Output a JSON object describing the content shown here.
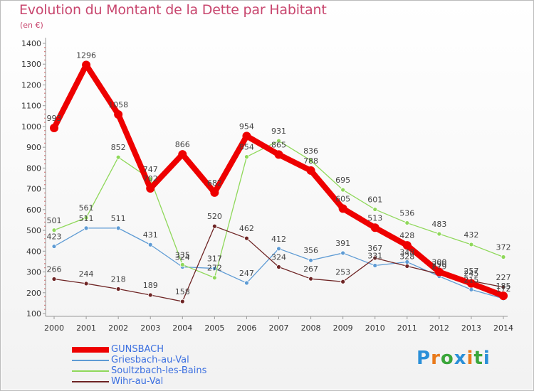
{
  "title": "Evolution du Montant de la Dette par Habitant",
  "unit": "(en €)",
  "logo": "Proxiti",
  "chart_data": {
    "type": "line",
    "title": "Evolution du Montant de la Dette par Habitant",
    "ylabel": "(en €)",
    "xlabel": "",
    "x": [
      "2000",
      "2001",
      "2002",
      "2003",
      "2004",
      "2005",
      "2006",
      "2007",
      "2008",
      "2009",
      "2010",
      "2011",
      "2012",
      "2013",
      "2014"
    ],
    "ylim": [
      100,
      1400
    ],
    "yticks": [
      100,
      200,
      300,
      400,
      500,
      600,
      700,
      800,
      900,
      1000,
      1100,
      1200,
      1300,
      1400
    ],
    "grid": false,
    "legend": "bottom-left",
    "series": [
      {
        "name": "GUNSBACH",
        "color": "#ee0000",
        "thick": true,
        "values": [
          993,
          1296,
          1058,
          702,
          866,
          682,
          954,
          865,
          788,
          605,
          513,
          428,
          300,
          245,
          185
        ],
        "labels": [
          "993",
          "1296",
          "1058",
          "702",
          "866",
          "682",
          "954",
          "865",
          "788",
          "605",
          "513",
          "428",
          "300",
          "245",
          "185"
        ]
      },
      {
        "name": "Griesbach-au-Val",
        "color": "#5e9bd4",
        "thick": false,
        "values": [
          423,
          511,
          511,
          431,
          324,
          317,
          247,
          412,
          356,
          391,
          331,
          348,
          279,
          215,
          172
        ],
        "labels": [
          "423",
          "511",
          "511",
          "431",
          "324",
          "317",
          "247",
          "412",
          "356",
          "391",
          "331",
          "348",
          "279",
          "215",
          "172"
        ]
      },
      {
        "name": "Soultzbach-les-Bains",
        "color": "#8fd85a",
        "thick": false,
        "values": [
          501,
          561,
          852,
          747,
          335,
          272,
          854,
          931,
          836,
          695,
          601,
          536,
          483,
          432,
          372
        ],
        "labels": [
          "501",
          "561",
          "852",
          "747",
          "335",
          "272",
          "854",
          "931",
          "836",
          "695",
          "601",
          "536",
          "483",
          "432",
          "372"
        ]
      },
      {
        "name": "Wihr-au-Val",
        "color": "#6e2424",
        "thick": false,
        "values": [
          266,
          244,
          218,
          189,
          158,
          520,
          462,
          324,
          267,
          253,
          367,
          328,
          290,
          257,
          227
        ],
        "labels": [
          "266",
          "244",
          "218",
          "189",
          "158",
          "520",
          "462",
          "324",
          "267",
          "253",
          "367",
          "328",
          "290",
          "257",
          "227"
        ]
      }
    ]
  },
  "colors": {
    "title": "#c8466e",
    "legend_text": "#3b6fe0",
    "axis": "#999999",
    "tick_text": "#333333",
    "label_text": "#444444"
  }
}
